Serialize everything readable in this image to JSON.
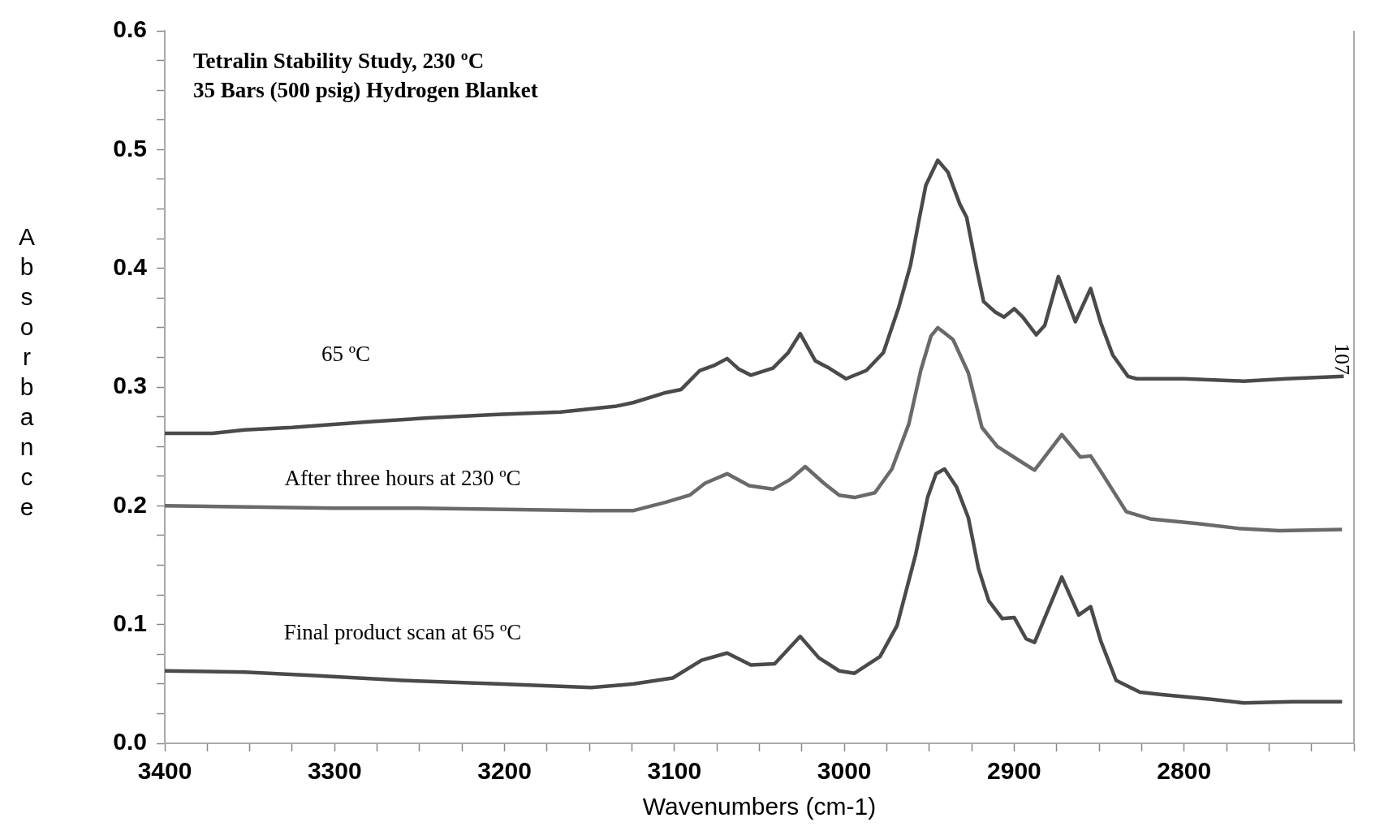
{
  "chart_data": {
    "type": "line",
    "title": "Tetralin Stability Study, 230 ºC",
    "subtitle": "35 Bars (500 psig) Hydrogen Blanket",
    "xlabel": "Wavenumbers (cm-1)",
    "ylabel": "Absorbance",
    "annotations": [
      "107"
    ],
    "xlim": [
      3400,
      2700
    ],
    "xticks": [
      3400,
      {
        "value": 3375,
        "label": null
      },
      {
        "value": 3350,
        "label": null
      },
      {
        "value": 3325,
        "label": null
      },
      3300,
      {
        "value": 3275,
        "label": null
      },
      {
        "value": 3250,
        "label": null
      },
      {
        "value": 3225,
        "label": null
      },
      3200,
      {
        "value": 3175,
        "label": null
      },
      {
        "value": 3150,
        "label": null
      },
      {
        "value": 3125,
        "label": null
      },
      3100,
      {
        "value": 3075,
        "label": null
      },
      {
        "value": 3050,
        "label": null
      },
      {
        "value": 3025,
        "label": null
      },
      3000,
      {
        "value": 2975,
        "label": null
      },
      {
        "value": 2950,
        "label": null
      },
      {
        "value": 2925,
        "label": null
      },
      2900,
      {
        "value": 2875,
        "label": null
      },
      {
        "value": 2850,
        "label": null
      },
      {
        "value": 2825,
        "label": null
      },
      2800,
      {
        "value": 2775,
        "label": null
      },
      {
        "value": 2750,
        "label": null
      },
      {
        "value": 2725,
        "label": null
      },
      {
        "value": 2700,
        "label": null
      }
    ],
    "ylim": [
      0,
      0.6
    ],
    "yticks": [
      {
        "value": 0,
        "label": "0.0"
      },
      {
        "value": 0.025,
        "label": null
      },
      {
        "value": 0.05,
        "label": null
      },
      {
        "value": 0.075,
        "label": null
      },
      0.1,
      {
        "value": 0.125,
        "label": null
      },
      {
        "value": 0.15,
        "label": null
      },
      {
        "value": 0.175,
        "label": null
      },
      0.2,
      {
        "value": 0.225,
        "label": null
      },
      {
        "value": 0.25,
        "label": null
      },
      {
        "value": 0.275,
        "label": null
      },
      0.3,
      {
        "value": 0.325,
        "label": null
      },
      {
        "value": 0.35,
        "label": null
      },
      {
        "value": 0.375,
        "label": null
      },
      0.4,
      {
        "value": 0.425,
        "label": null
      },
      {
        "value": 0.45,
        "label": null
      },
      {
        "value": 0.475,
        "label": null
      },
      0.5,
      {
        "value": 0.525,
        "label": null
      },
      {
        "value": 0.55,
        "label": null
      },
      {
        "value": 0.575,
        "label": null
      },
      0.6
    ],
    "grid": false,
    "legend": false,
    "marker": "none",
    "line_style": "solid",
    "series": [
      {
        "name": "65 ºC",
        "color": "#4a4a4a",
        "x": [
          3400,
          3372,
          3353,
          3325,
          3278,
          3245,
          3204,
          3167,
          3134,
          3124,
          3106,
          3096,
          3085,
          3077,
          3069,
          3062,
          3055,
          3042,
          3033,
          3026,
          3017,
          3009,
          2999,
          2987,
          2977,
          2968,
          2961,
          2956,
          2952,
          2945,
          2939,
          2932,
          2928,
          2922,
          2918,
          2911,
          2906,
          2900,
          2895,
          2887,
          2882,
          2874,
          2864,
          2855,
          2849,
          2842,
          2833,
          2828,
          2800,
          2765,
          2740,
          2706
        ],
        "values": [
          0.261,
          0.261,
          0.264,
          0.266,
          0.271,
          0.274,
          0.277,
          0.279,
          0.284,
          0.287,
          0.295,
          0.298,
          0.314,
          0.318,
          0.324,
          0.315,
          0.31,
          0.316,
          0.329,
          0.345,
          0.322,
          0.316,
          0.307,
          0.314,
          0.329,
          0.367,
          0.403,
          0.441,
          0.47,
          0.491,
          0.481,
          0.454,
          0.443,
          0.399,
          0.372,
          0.363,
          0.359,
          0.366,
          0.359,
          0.344,
          0.352,
          0.393,
          0.355,
          0.383,
          0.354,
          0.327,
          0.309,
          0.307,
          0.307,
          0.305,
          0.307,
          0.309
        ]
      },
      {
        "name": "After three hours at 230 ºC",
        "color": "#6a6a6a",
        "x": [
          3400,
          3350,
          3300,
          3250,
          3200,
          3150,
          3124,
          3105,
          3091,
          3082,
          3069,
          3056,
          3042,
          3032,
          3023,
          3012,
          3003,
          2994,
          2982,
          2972,
          2962,
          2955,
          2949,
          2945,
          2936,
          2927,
          2919,
          2910,
          2898,
          2888,
          2872,
          2861,
          2855,
          2849,
          2834,
          2820,
          2792,
          2768,
          2744,
          2707
        ],
        "values": [
          0.2,
          0.199,
          0.198,
          0.198,
          0.197,
          0.196,
          0.196,
          0.203,
          0.209,
          0.219,
          0.227,
          0.217,
          0.214,
          0.222,
          0.233,
          0.219,
          0.209,
          0.207,
          0.211,
          0.231,
          0.269,
          0.314,
          0.343,
          0.35,
          0.34,
          0.312,
          0.266,
          0.25,
          0.239,
          0.23,
          0.26,
          0.241,
          0.242,
          0.229,
          0.195,
          0.189,
          0.185,
          0.181,
          0.179,
          0.18
        ]
      },
      {
        "name": "Final product scan at 65 ºC",
        "color": "#4a4a4a",
        "x": [
          3400,
          3353,
          3312,
          3260,
          3204,
          3149,
          3124,
          3101,
          3084,
          3069,
          3055,
          3041,
          3026,
          3015,
          3003,
          2994,
          2979,
          2969,
          2958,
          2951,
          2946,
          2941,
          2934,
          2927,
          2921,
          2915,
          2907,
          2900,
          2893,
          2888,
          2872,
          2862,
          2855,
          2849,
          2840,
          2826,
          2813,
          2784,
          2765,
          2736,
          2707
        ],
        "values": [
          0.061,
          0.06,
          0.057,
          0.053,
          0.05,
          0.047,
          0.05,
          0.055,
          0.07,
          0.076,
          0.066,
          0.067,
          0.09,
          0.072,
          0.061,
          0.059,
          0.073,
          0.099,
          0.159,
          0.207,
          0.227,
          0.231,
          0.216,
          0.19,
          0.147,
          0.12,
          0.105,
          0.106,
          0.088,
          0.085,
          0.14,
          0.108,
          0.115,
          0.086,
          0.053,
          0.043,
          0.041,
          0.037,
          0.034,
          0.035,
          0.035
        ]
      }
    ]
  }
}
